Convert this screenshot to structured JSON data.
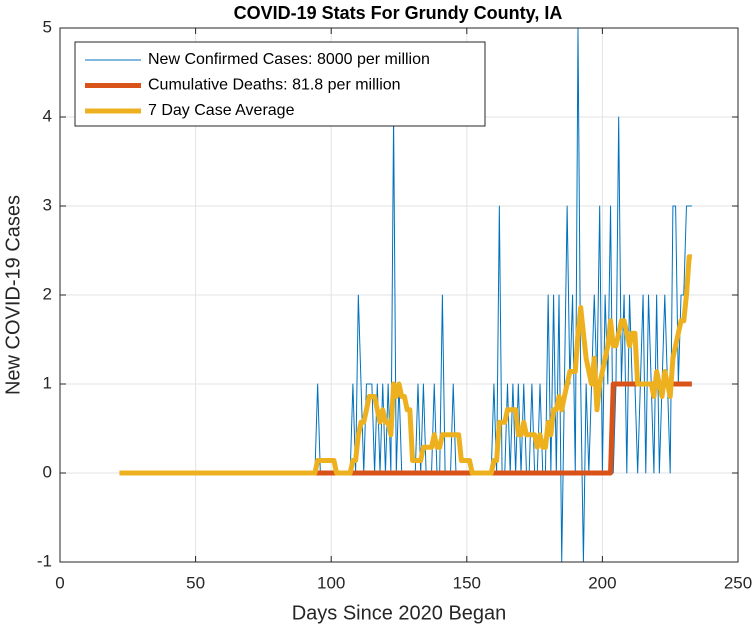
{
  "chart_data": {
    "type": "line",
    "title": "COVID-19 Stats For Grundy County, IA",
    "xlabel": "Days Since 2020 Began",
    "ylabel": "New COVID-19 Cases",
    "xlim": [
      0,
      250
    ],
    "xticks": [
      0,
      50,
      100,
      150,
      200,
      250
    ],
    "ylim": [
      -1,
      5
    ],
    "yticks": [
      -1,
      0,
      1,
      2,
      3,
      4,
      5
    ],
    "grid": true,
    "legend": "upper left",
    "x": [
      22,
      23,
      24,
      25,
      26,
      27,
      28,
      29,
      30,
      31,
      32,
      33,
      34,
      35,
      36,
      37,
      38,
      39,
      40,
      41,
      42,
      43,
      44,
      45,
      46,
      47,
      48,
      49,
      50,
      51,
      52,
      53,
      54,
      55,
      56,
      57,
      58,
      59,
      60,
      61,
      62,
      63,
      64,
      65,
      66,
      67,
      68,
      69,
      70,
      71,
      72,
      73,
      74,
      75,
      76,
      77,
      78,
      79,
      80,
      81,
      82,
      83,
      84,
      85,
      86,
      87,
      88,
      89,
      90,
      91,
      92,
      93,
      94,
      95,
      96,
      97,
      98,
      99,
      100,
      101,
      102,
      103,
      104,
      105,
      106,
      107,
      108,
      109,
      110,
      111,
      112,
      113,
      114,
      115,
      116,
      117,
      118,
      119,
      120,
      121,
      122,
      123,
      124,
      125,
      126,
      127,
      128,
      129,
      130,
      131,
      132,
      133,
      134,
      135,
      136,
      137,
      138,
      139,
      140,
      141,
      142,
      143,
      144,
      145,
      146,
      147,
      148,
      149,
      150,
      151,
      152,
      153,
      154,
      155,
      156,
      157,
      158,
      159,
      160,
      161,
      162,
      163,
      164,
      165,
      166,
      167,
      168,
      169,
      170,
      171,
      172,
      173,
      174,
      175,
      176,
      177,
      178,
      179,
      180,
      181,
      182,
      183,
      184,
      185,
      186,
      187,
      188,
      189,
      190,
      191,
      192,
      193,
      194,
      195,
      196,
      197,
      198,
      199,
      200,
      201,
      202,
      203,
      204,
      205,
      206,
      207,
      208,
      209,
      210,
      211,
      212,
      213,
      214,
      215,
      216,
      217,
      218,
      219,
      220,
      221,
      222,
      223,
      224,
      225,
      226,
      227,
      228,
      229,
      230,
      231,
      232,
      233
    ],
    "series": [
      {
        "name": "New Confirmed Cases: 8000 per million",
        "color": "#0072BD",
        "width": 1,
        "values": [
          0,
          0,
          0,
          0,
          0,
          0,
          0,
          0,
          0,
          0,
          0,
          0,
          0,
          0,
          0,
          0,
          0,
          0,
          0,
          0,
          0,
          0,
          0,
          0,
          0,
          0,
          0,
          0,
          0,
          0,
          0,
          0,
          0,
          0,
          0,
          0,
          0,
          0,
          0,
          0,
          0,
          0,
          0,
          0,
          0,
          0,
          0,
          0,
          0,
          0,
          0,
          0,
          0,
          0,
          0,
          0,
          0,
          0,
          0,
          0,
          0,
          0,
          0,
          0,
          0,
          0,
          0,
          0,
          0,
          0,
          0,
          0,
          0,
          1,
          0,
          0,
          0,
          0,
          0,
          0,
          0,
          0,
          0,
          0,
          0,
          0,
          1,
          0,
          2,
          1,
          0,
          1,
          1,
          1,
          0,
          1,
          0,
          1,
          0,
          1,
          0,
          4,
          0,
          1,
          0,
          0,
          0,
          0,
          0,
          0,
          1,
          0,
          1,
          0,
          0,
          0,
          1,
          0,
          0,
          2,
          0,
          0,
          0,
          1,
          0,
          0,
          0,
          0,
          0,
          0,
          0,
          0,
          0,
          0,
          0,
          0,
          0,
          0,
          1,
          0,
          3,
          0,
          0,
          1,
          0,
          1,
          0,
          1,
          0,
          1,
          0,
          0,
          1,
          0,
          0,
          1,
          0,
          0,
          2,
          0,
          2,
          0,
          2,
          -1,
          1,
          3,
          1,
          2,
          0,
          5,
          1,
          -1,
          1,
          0,
          1,
          2,
          1,
          3,
          0,
          2,
          1,
          3,
          0,
          1,
          4,
          1,
          2,
          0,
          2,
          1,
          1,
          0,
          1,
          2,
          0,
          2,
          1,
          0,
          2,
          0,
          1,
          2,
          1,
          0,
          3,
          3,
          1,
          2,
          2,
          3,
          3,
          3
        ]
      },
      {
        "name": "Cumulative Deaths: 81.8 per million",
        "color": "#D95319",
        "width": 5,
        "values": [
          0,
          0,
          0,
          0,
          0,
          0,
          0,
          0,
          0,
          0,
          0,
          0,
          0,
          0,
          0,
          0,
          0,
          0,
          0,
          0,
          0,
          0,
          0,
          0,
          0,
          0,
          0,
          0,
          0,
          0,
          0,
          0,
          0,
          0,
          0,
          0,
          0,
          0,
          0,
          0,
          0,
          0,
          0,
          0,
          0,
          0,
          0,
          0,
          0,
          0,
          0,
          0,
          0,
          0,
          0,
          0,
          0,
          0,
          0,
          0,
          0,
          0,
          0,
          0,
          0,
          0,
          0,
          0,
          0,
          0,
          0,
          0,
          0,
          0,
          0,
          0,
          0,
          0,
          0,
          0,
          0,
          0,
          0,
          0,
          0,
          0,
          0,
          0,
          0,
          0,
          0,
          0,
          0,
          0,
          0,
          0,
          0,
          0,
          0,
          0,
          0,
          0,
          0,
          0,
          0,
          0,
          0,
          0,
          0,
          0,
          0,
          0,
          0,
          0,
          0,
          0,
          0,
          0,
          0,
          0,
          0,
          0,
          0,
          0,
          0,
          0,
          0,
          0,
          0,
          0,
          0,
          0,
          0,
          0,
          0,
          0,
          0,
          0,
          0,
          0,
          0,
          0,
          0,
          0,
          0,
          0,
          0,
          0,
          0,
          0,
          0,
          0,
          0,
          0,
          0,
          0,
          0,
          0,
          0,
          0,
          0,
          0,
          0,
          0,
          0,
          0,
          0,
          0,
          0,
          0,
          0,
          0,
          0,
          0,
          0,
          0,
          0,
          0,
          0,
          0,
          0,
          0,
          1,
          1,
          1,
          1,
          1,
          1,
          1,
          1,
          1,
          1,
          1,
          1,
          1,
          1,
          1,
          1,
          1,
          1,
          1,
          1,
          1,
          1,
          1,
          1,
          1,
          1,
          1,
          1,
          1,
          1
        ]
      },
      {
        "name": "7 Day Case Average",
        "color": "#EDB120",
        "width": 5,
        "values": [
          0,
          0,
          0,
          0,
          0,
          0,
          0,
          0,
          0,
          0,
          0,
          0,
          0,
          0,
          0,
          0,
          0,
          0,
          0,
          0,
          0,
          0,
          0,
          0,
          0,
          0,
          0,
          0,
          0,
          0,
          0,
          0,
          0,
          0,
          0,
          0,
          0,
          0,
          0,
          0,
          0,
          0,
          0,
          0,
          0,
          0,
          0,
          0,
          0,
          0,
          0,
          0,
          0,
          0,
          0,
          0,
          0,
          0,
          0,
          0,
          0,
          0,
          0,
          0,
          0,
          0,
          0,
          0,
          0,
          0,
          0,
          0,
          0,
          0.14,
          0.14,
          0.14,
          0.14,
          0.14,
          0.14,
          0.14,
          0,
          0,
          0,
          0,
          0,
          0,
          0.14,
          0.14,
          0.43,
          0.57,
          0.57,
          0.71,
          0.86,
          0.86,
          0.86,
          0.71,
          0.57,
          0.71,
          0.57,
          0.57,
          0.43,
          1,
          0.86,
          1,
          0.86,
          0.86,
          0.71,
          0.71,
          0.14,
          0.14,
          0.14,
          0.14,
          0.29,
          0.29,
          0.29,
          0.29,
          0.43,
          0.29,
          0.29,
          0.43,
          0.43,
          0.43,
          0.43,
          0.43,
          0.43,
          0.43,
          0.14,
          0.14,
          0.14,
          0.14,
          0,
          0,
          0,
          0,
          0,
          0,
          0,
          0,
          0.14,
          0.14,
          0.57,
          0.57,
          0.57,
          0.71,
          0.71,
          0.71,
          0.71,
          0.43,
          0.43,
          0.57,
          0.43,
          0.43,
          0.43,
          0.43,
          0.29,
          0.43,
          0.29,
          0.29,
          0.57,
          0.43,
          0.71,
          0.71,
          0.86,
          0.71,
          0.86,
          1,
          1.14,
          1.14,
          1.14,
          1.57,
          1.86,
          1.57,
          1.29,
          1.14,
          1,
          1.29,
          0.71,
          1,
          1.14,
          1.29,
          1.43,
          1.71,
          1.43,
          1.43,
          1.57,
          1.71,
          1.71,
          1.57,
          1.43,
          1.57,
          1.57,
          1,
          1,
          1,
          1,
          1,
          1,
          0.86,
          1.14,
          1,
          0.86,
          1.14,
          1,
          0.86,
          1.29,
          1.43,
          1.57,
          1.71,
          1.71,
          2,
          2.43,
          2.43
        ]
      }
    ]
  }
}
